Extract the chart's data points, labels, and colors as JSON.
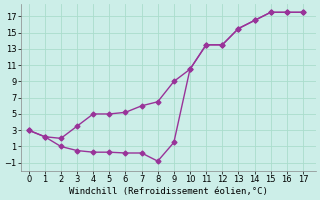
{
  "x": [
    0,
    1,
    2,
    3,
    4,
    5,
    6,
    7,
    8,
    9,
    10,
    11,
    12,
    13,
    14,
    15,
    16,
    17
  ],
  "temp": [
    3,
    2.2,
    2,
    3.5,
    5,
    5,
    5.2,
    6,
    6.5,
    9,
    10.5,
    13.5,
    13.5,
    15.5,
    16.5,
    17.5,
    17.5,
    17.5
  ],
  "windchill": [
    3,
    2.2,
    1,
    0.5,
    0.3,
    0.3,
    0.2,
    0.2,
    -0.8,
    1.5,
    10.5,
    13.5,
    13.5,
    15.5,
    16.5,
    17.5,
    17.5,
    17.5
  ],
  "line_color": "#993399",
  "bg_color": "#cceee8",
  "grid_color": "#aaddcc",
  "xlabel": "Windchill (Refroidissement éolien,°C)",
  "xlim": [
    -0.5,
    17.8
  ],
  "ylim": [
    -2,
    18.5
  ],
  "xticks": [
    0,
    1,
    2,
    3,
    4,
    5,
    6,
    7,
    8,
    9,
    10,
    11,
    12,
    13,
    14,
    15,
    16,
    17
  ],
  "yticks": [
    -1,
    1,
    3,
    5,
    7,
    9,
    11,
    13,
    15,
    17
  ],
  "marker": "D",
  "markersize": 2.5,
  "linewidth": 1.0,
  "xlabel_fontsize": 6.5,
  "tick_fontsize": 6
}
